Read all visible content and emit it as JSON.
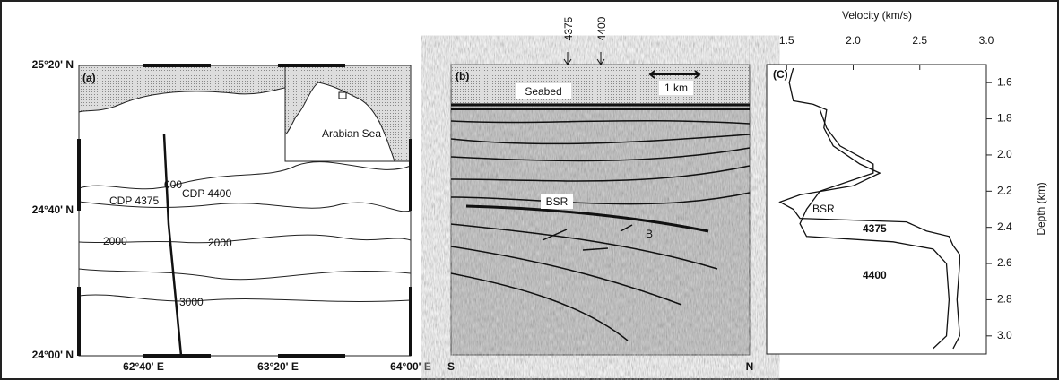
{
  "panel_a": {
    "label": "(a)",
    "lat_labels": [
      "25°20' N",
      "24°40' N",
      "24°00' N"
    ],
    "lon_labels": [
      "62°40' E",
      "63°20' E",
      "64°00' E"
    ],
    "inset_label": "Arabian Sea",
    "cdp_labels": [
      "CDP 4375",
      "CDP 4400"
    ],
    "contour_labels": [
      "000",
      "2000",
      "2000",
      "3000"
    ]
  },
  "panel_b": {
    "label": "(b)",
    "cdp_labels": [
      "4375",
      "4400"
    ],
    "seabed": "Seabed",
    "scale": "1 km",
    "bsr": "BSR",
    "b": "B",
    "left_end": "S",
    "right_end": "N"
  },
  "chart_data": {
    "type": "line",
    "label": "(C)",
    "xlabel": "Velocity (km/s)",
    "ylabel": "Depth (km)",
    "annotation": "BSR",
    "xlim": [
      1.35,
      3.0
    ],
    "xticks": [
      1.5,
      {
        "value": 2,
        "label": "2.0"
      },
      2.5,
      {
        "value": 3,
        "label": "3.0"
      }
    ],
    "ylim": [
      1.5,
      3.1
    ],
    "yticks": [
      1.6,
      1.8,
      {
        "value": 2,
        "label": "2.0"
      },
      2.2,
      2.4,
      2.6,
      2.8,
      {
        "value": 3,
        "label": "3.0"
      }
    ],
    "series": [
      {
        "name": "4375",
        "color": "#111111",
        "depth": [
          1.52,
          1.6,
          1.7,
          1.72,
          1.75,
          1.85,
          1.95,
          2.05,
          2.1,
          2.17,
          2.22,
          2.26,
          2.3,
          2.35,
          2.37,
          2.42,
          2.45,
          2.5,
          2.55,
          2.6,
          2.8,
          3.0,
          3.07
        ],
        "values": [
          1.55,
          1.52,
          1.55,
          1.7,
          1.8,
          1.78,
          1.85,
          2.05,
          2.2,
          2.0,
          1.6,
          1.45,
          1.55,
          1.6,
          2.4,
          2.55,
          2.72,
          2.75,
          2.8,
          2.8,
          2.78,
          2.8,
          2.75
        ]
      },
      {
        "name": "4400",
        "color": "#111111",
        "depth": [
          1.75,
          1.85,
          1.95,
          2.05,
          2.1,
          2.2,
          2.3,
          2.38,
          2.45,
          2.48,
          2.52,
          2.6,
          2.8,
          3.0,
          3.07
        ],
        "values": [
          1.75,
          1.8,
          1.9,
          2.15,
          2.15,
          1.75,
          1.65,
          1.6,
          1.65,
          2.3,
          2.6,
          2.7,
          2.72,
          2.7,
          2.6
        ]
      }
    ]
  }
}
